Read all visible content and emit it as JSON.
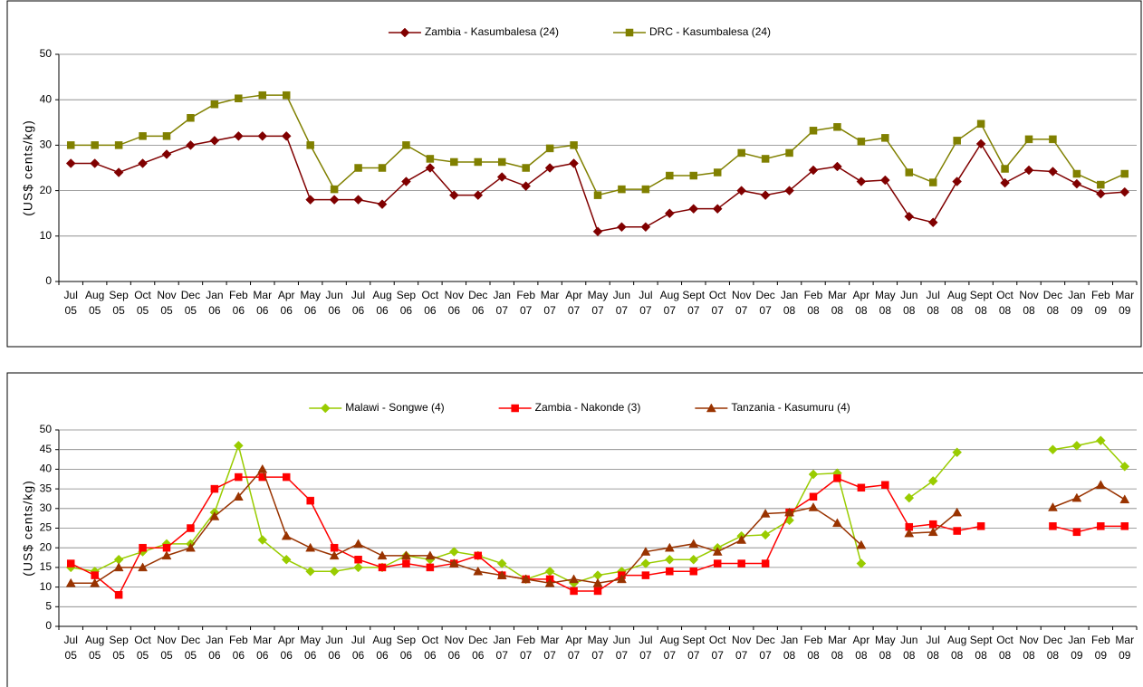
{
  "chart_data": [
    {
      "type": "line",
      "y_label": "(US$ cents/kg)",
      "categories": [
        "Jul\n05",
        "Aug\n05",
        "Sep\n05",
        "Oct\n05",
        "Nov\n05",
        "Dec\n05",
        "Jan\n06",
        "Feb\n06",
        "Mar\n06",
        "Apr\n06",
        "May\n06",
        "Jun\n06",
        "Jul\n06",
        "Aug\n06",
        "Sep\n06",
        "Oct\n06",
        "Nov\n06",
        "Dec\n06",
        "Jan\n07",
        "Feb\n07",
        "Mar\n07",
        "Apr\n07",
        "May\n07",
        "Jun\n07",
        "Jul\n07",
        "Aug\n07",
        "Sept\n07",
        "Oct\n07",
        "Nov\n07",
        "Dec\n07",
        "Jan\n08",
        "Feb\n08",
        "Mar\n08",
        "Apr\n08",
        "May\n08",
        "Jun\n08",
        "Jul\n08",
        "Aug\n08",
        "Sept\n08",
        "Oct\n08",
        "Nov\n08",
        "Dec\n08",
        "Jan\n09",
        "Feb\n09",
        "Mar\n09"
      ],
      "series": [
        {
          "name": "Zambia - Kasumbalesa (24)",
          "color": "#800000",
          "marker": "diamond",
          "values": [
            26,
            26,
            24,
            26,
            28,
            30,
            31,
            32,
            32,
            32,
            18,
            18,
            18,
            17,
            22,
            25,
            19,
            19,
            23,
            21,
            25,
            26,
            11,
            12,
            12,
            15,
            16,
            16,
            20,
            19,
            20,
            24.5,
            25.3,
            22,
            22.3,
            14.3,
            13,
            22,
            30.3,
            21.7,
            24.5,
            24.2,
            21.5,
            19.3,
            19.7
          ]
        },
        {
          "name": "DRC - Kasumbalesa (24)",
          "color": "#808000",
          "marker": "square",
          "values": [
            30,
            30,
            30,
            32,
            32,
            36,
            39,
            40.3,
            41,
            41,
            30,
            20.3,
            25,
            25,
            30,
            27,
            26.3,
            26.3,
            26.3,
            25,
            29.3,
            30,
            19,
            20.3,
            20.3,
            23.3,
            23.3,
            24,
            28.3,
            27,
            28.3,
            33.2,
            34,
            30.8,
            31.6,
            24,
            21.8,
            31,
            34.7,
            24.8,
            31.3,
            31.3,
            23.7,
            21.3,
            23.7
          ]
        }
      ],
      "ylim": [
        0,
        50
      ],
      "yticks": [
        0,
        10,
        20,
        30,
        40,
        50
      ],
      "grid": true,
      "legend": "top"
    },
    {
      "type": "line",
      "y_label": "(US$ cents/kg)",
      "categories": [
        "Jul\n05",
        "Aug\n05",
        "Sep\n05",
        "Oct\n05",
        "Nov\n05",
        "Dec\n05",
        "Jan\n06",
        "Feb\n06",
        "Mar\n06",
        "Apr\n06",
        "May\n06",
        "Jun\n06",
        "Jul\n06",
        "Aug\n06",
        "Sep\n06",
        "Oct\n06",
        "Nov\n06",
        "Dec\n06",
        "Jan\n07",
        "Feb\n07",
        "Mar\n07",
        "Apr\n07",
        "May\n07",
        "Jun\n07",
        "Jul\n07",
        "Aug\n07",
        "Sept\n07",
        "Oct\n07",
        "Nov\n07",
        "Dec\n07",
        "Jan\n08",
        "Feb\n08",
        "Mar\n08",
        "Apr\n08",
        "May\n08",
        "Jun\n08",
        "Jul\n08",
        "Aug\n08",
        "Sept\n08",
        "Oct\n08",
        "Nov\n08",
        "Dec\n08",
        "Jan\n09",
        "Feb\n09",
        "Mar\n09"
      ],
      "series": [
        {
          "name": "Malawi - Songwe (4)",
          "color": "#99cc00",
          "marker": "diamond",
          "values": [
            15,
            14,
            17,
            19,
            21,
            21,
            29,
            46,
            22,
            17,
            14,
            14,
            15,
            15,
            18,
            17,
            19,
            18,
            16,
            12,
            14,
            11,
            13,
            14,
            16,
            17,
            17,
            20,
            23,
            23.3,
            27,
            38.7,
            39,
            16,
            null,
            32.7,
            37,
            44.3,
            null,
            null,
            null,
            45,
            46,
            47.3,
            40.7
          ]
        },
        {
          "name": "Zambia - Nakonde (3)",
          "color": "#ff0000",
          "marker": "square",
          "values": [
            16,
            13,
            8,
            20,
            20,
            25,
            35,
            38,
            38,
            38,
            32,
            20,
            17,
            15,
            16,
            15,
            16,
            18,
            13,
            12,
            12,
            9,
            9,
            13,
            13,
            14,
            14,
            16,
            16,
            16,
            29,
            33,
            37.7,
            35.3,
            36,
            25.3,
            26,
            24.3,
            25.5,
            null,
            null,
            25.5,
            24,
            25.5,
            25.5
          ]
        },
        {
          "name": "Tanzania - Kasumuru (4)",
          "color": "#993300",
          "marker": "triangle",
          "values": [
            11,
            11,
            15,
            15,
            18,
            20,
            28,
            33,
            40,
            23,
            20,
            18,
            21,
            18,
            18,
            18,
            16,
            14,
            13,
            12,
            11,
            12,
            11,
            12,
            19,
            20,
            21,
            19,
            22,
            28.7,
            29,
            30.3,
            26.3,
            20.7,
            null,
            23.7,
            24,
            29,
            null,
            null,
            null,
            30.3,
            32.7,
            36,
            32.3
          ]
        }
      ],
      "ylim": [
        0,
        50
      ],
      "yticks": [
        0,
        5,
        10,
        15,
        20,
        25,
        30,
        35,
        40,
        45,
        50
      ],
      "grid": true,
      "legend": "top"
    }
  ]
}
